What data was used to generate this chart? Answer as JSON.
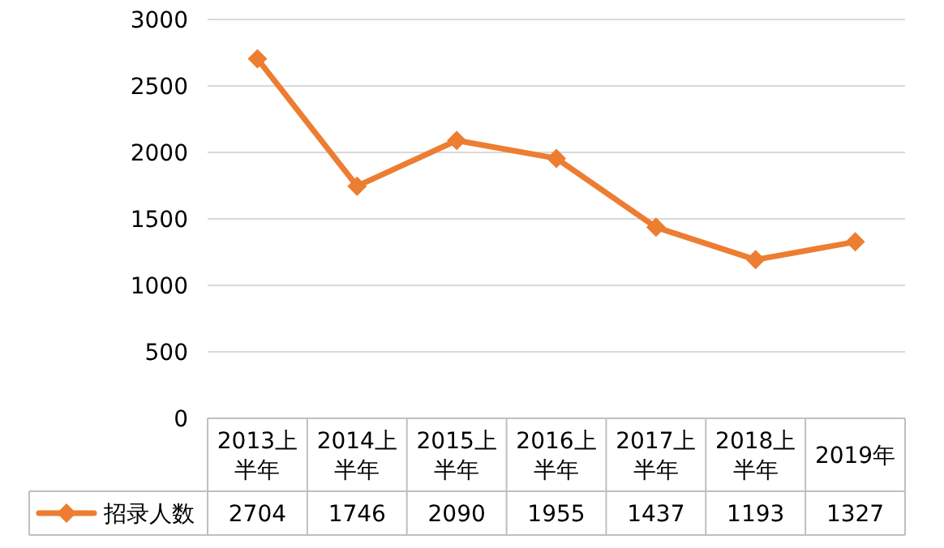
{
  "chart_data": {
    "type": "line",
    "categories": [
      "2013上半年",
      "2014上半年",
      "2015上半年",
      "2016上半年",
      "2017上半年",
      "2018上半年",
      "2019年"
    ],
    "series": [
      {
        "name": "招录人数",
        "color": "#ed7d31",
        "values": [
          2704,
          1746,
          2090,
          1955,
          1437,
          1193,
          1327
        ]
      }
    ],
    "ylim": [
      0,
      3000
    ],
    "yticks": [
      0,
      500,
      1000,
      1500,
      2000,
      2500,
      3000
    ],
    "grid": "y",
    "marker": "diamond",
    "line_style": "solid",
    "data_labels": true,
    "legend": "bottom left"
  }
}
